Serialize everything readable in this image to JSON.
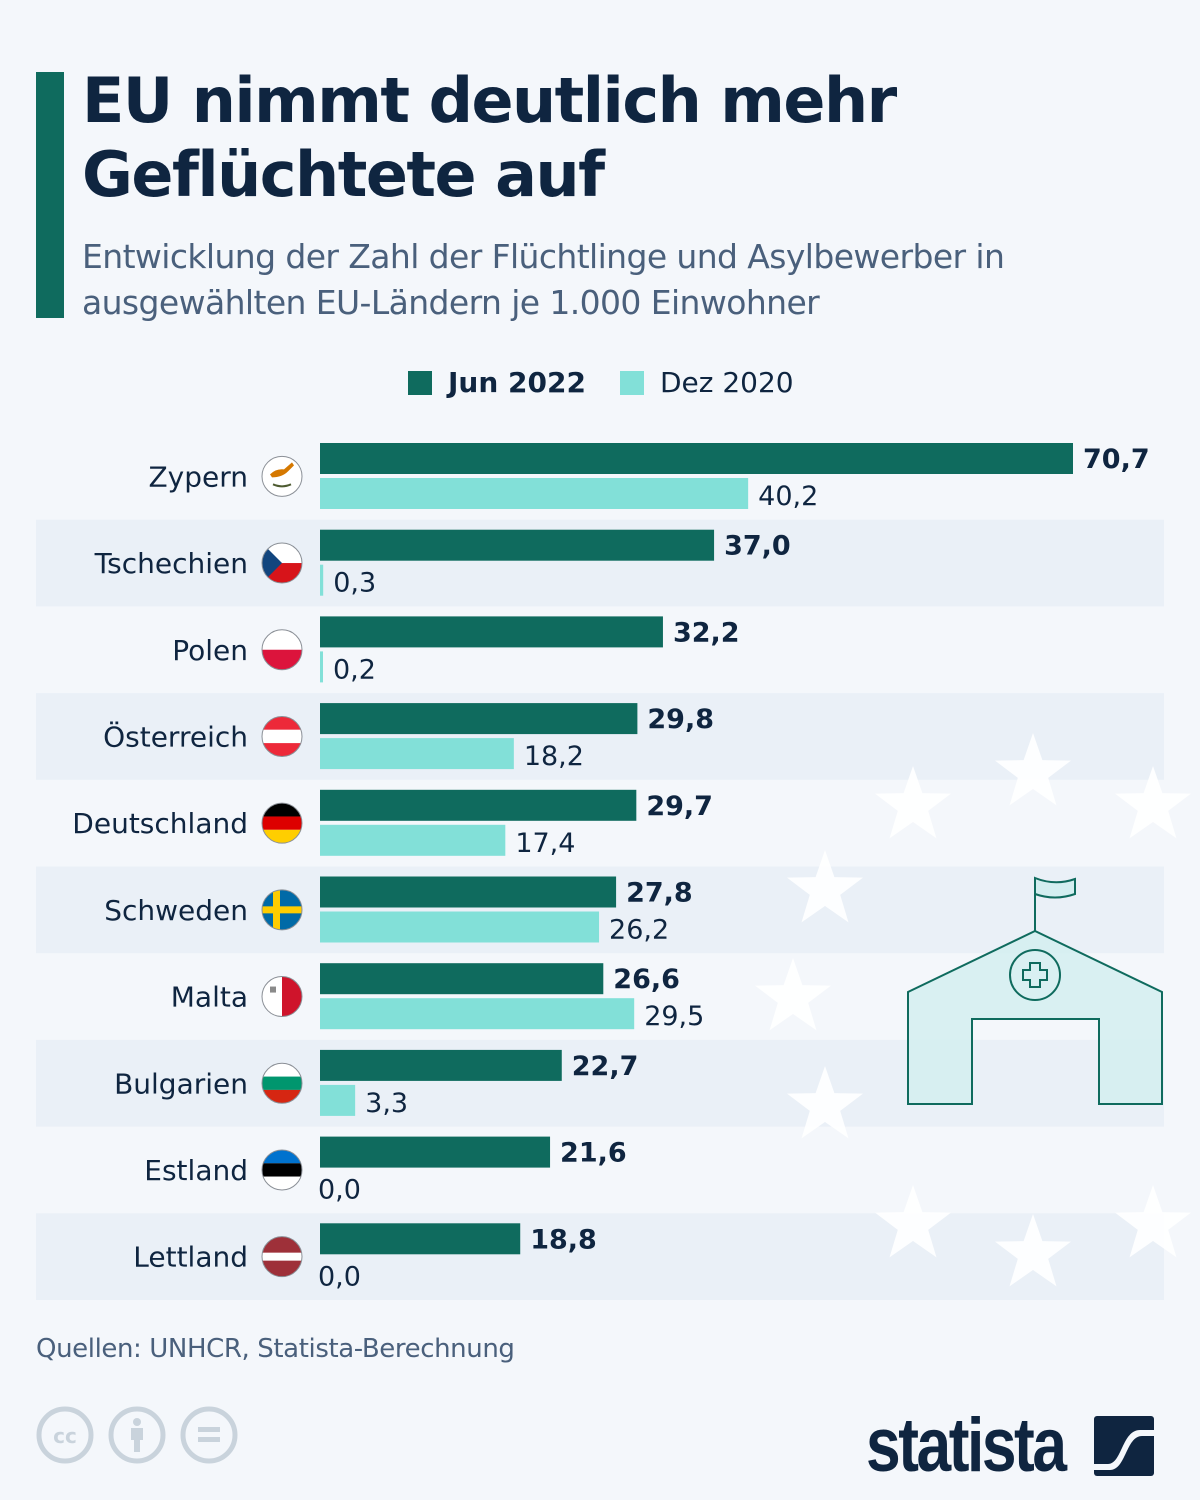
{
  "header": {
    "title": "EU nimmt deutlich mehr Geflüchtete auf",
    "subtitle": "Entwicklung der Zahl der Flüchtlinge und Asylbewerber in ausgewählten EU-Ländern je 1.000 Einwohner"
  },
  "legend": {
    "items": [
      {
        "label": "Jun 2022",
        "color": "#0f6b5e"
      },
      {
        "label": "Dez 2020",
        "color": "#82e0d8"
      }
    ]
  },
  "chart_data": {
    "type": "bar",
    "orientation": "horizontal",
    "title": "EU nimmt deutlich mehr Geflüchtete auf",
    "subtitle": "Entwicklung der Zahl der Flüchtlinge und Asylbewerber in ausgewählten EU-Ländern je 1.000 Einwohner",
    "xlabel": "",
    "ylabel": "",
    "xlim": [
      0,
      70.7
    ],
    "grid": false,
    "legend_position": "top-center",
    "categories": [
      "Zypern",
      "Tschechien",
      "Polen",
      "Österreich",
      "Deutschland",
      "Schweden",
      "Malta",
      "Bulgarien",
      "Estland",
      "Lettland"
    ],
    "flags": [
      "cyprus-flag",
      "czech-flag",
      "poland-flag",
      "austria-flag",
      "germany-flag",
      "sweden-flag",
      "malta-flag",
      "bulgaria-flag",
      "estonia-flag",
      "latvia-flag"
    ],
    "series": [
      {
        "name": "Jun 2022",
        "color": "#0f6b5e",
        "values": [
          70.7,
          37.0,
          32.2,
          29.8,
          29.7,
          27.8,
          26.6,
          22.7,
          21.6,
          18.8
        ],
        "labels": [
          "70,7",
          "37,0",
          "32,2",
          "29,8",
          "29,7",
          "27,8",
          "26,6",
          "22,7",
          "21,6",
          "18,8"
        ]
      },
      {
        "name": "Dez 2020",
        "color": "#82e0d8",
        "values": [
          40.2,
          0.3,
          0.2,
          18.2,
          17.4,
          26.2,
          29.5,
          3.3,
          0.0,
          0.0
        ],
        "labels": [
          "40,2",
          "0,3",
          "0,2",
          "18,2",
          "17,4",
          "26,2",
          "29,5",
          "3,3",
          "0,0",
          "0,0"
        ]
      }
    ]
  },
  "colors": {
    "accent": "#0f6b5e",
    "text_dark": "#0f2540",
    "text_muted": "#4a607c",
    "row_stripe": "#eaf0f7",
    "background": "#f4f7fb"
  },
  "decoration": {
    "illustration": "hospital-tent-icon",
    "background_pattern": "eu-stars"
  },
  "footer": {
    "source": "Quellen: UNHCR, Statista-Berechnung",
    "license_icons": [
      "cc-icon",
      "attribution-icon",
      "no-derivatives-icon"
    ],
    "logo_text": "statista"
  }
}
